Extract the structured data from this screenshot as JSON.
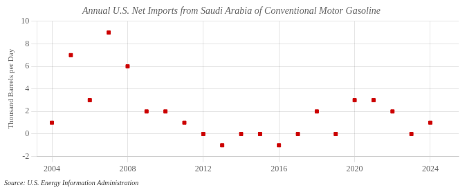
{
  "chart_data": {
    "type": "scatter",
    "title": "Annual U.S. Net Imports from Saudi Arabia of Conventional Motor Gasoline",
    "ylabel": "Thousand Barrels per Day",
    "annotation": "Source: U.S. Energy Information Administration",
    "x": [
      2004,
      2005,
      2006,
      2007,
      2008,
      2009,
      2010,
      2011,
      2012,
      2013,
      2014,
      2015,
      2016,
      2017,
      2018,
      2019,
      2020,
      2021,
      2022,
      2023,
      2024
    ],
    "values": [
      1,
      7,
      3,
      9,
      6,
      2,
      2,
      1,
      0,
      -1,
      0,
      0,
      -1,
      0,
      2,
      0,
      3,
      3,
      2,
      0,
      1
    ],
    "color": "#cc0000",
    "marker": "square",
    "xlim": [
      2003.2,
      2025.5
    ],
    "xticks": [
      2004,
      2008,
      2012,
      2016,
      2020,
      2024
    ],
    "ylim": [
      -2,
      10
    ],
    "yticks": [
      -2,
      0,
      2,
      4,
      6,
      8,
      10
    ],
    "grid": true
  }
}
